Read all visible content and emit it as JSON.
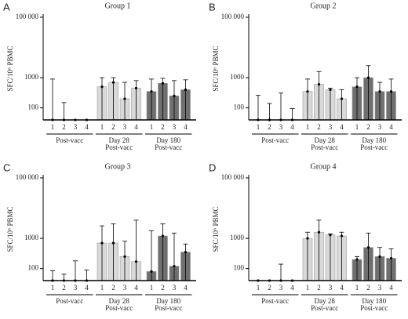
{
  "chart_data": [
    {
      "type": "bar",
      "panel": "A",
      "title": "Group 1",
      "ylabel": "SFC/10⁶ PBMC",
      "log_scale": true,
      "ylim": [
        40,
        100000
      ],
      "yticks": [
        100,
        1000,
        {
          "value": 100000,
          "label": "100 000"
        }
      ],
      "categories": [
        "1",
        "2",
        "3",
        "4",
        "1",
        "2",
        "3",
        "4",
        "1",
        "2",
        "3",
        "4"
      ],
      "groups": [
        {
          "label": [
            "Post-vacc"
          ],
          "color": "#ffffff"
        },
        {
          "label": [
            "Day 28",
            "Post-vacc"
          ],
          "color": "#d9d9d9"
        },
        {
          "label": [
            "Day 180",
            "Post-vacc"
          ],
          "color": "#6f6f6f"
        }
      ],
      "values": [
        40,
        40,
        40,
        40,
        500,
        700,
        200,
        450,
        350,
        650,
        250,
        400
      ],
      "whisker_max": [
        900,
        150,
        40,
        40,
        1000,
        1000,
        700,
        800,
        900,
        950,
        800,
        850
      ]
    },
    {
      "type": "bar",
      "panel": "B",
      "title": "Group 2",
      "ylabel": "SFC/10⁶ PBMC",
      "log_scale": true,
      "ylim": [
        40,
        100000
      ],
      "yticks": [
        100,
        1000,
        {
          "value": 100000,
          "label": "100 000"
        }
      ],
      "categories": [
        "1",
        "2",
        "3",
        "4",
        "1",
        "2",
        "3",
        "4",
        "1",
        "2",
        "3",
        "4"
      ],
      "groups": [
        {
          "label": [
            "Post-vacc"
          ],
          "color": "#ffffff"
        },
        {
          "label": [
            "Day 28",
            "Post-vacc"
          ],
          "color": "#d9d9d9"
        },
        {
          "label": [
            "Day 180",
            "Post-vacc"
          ],
          "color": "#6f6f6f"
        }
      ],
      "values": [
        40,
        40,
        40,
        40,
        350,
        600,
        400,
        200,
        500,
        1000,
        350,
        350
      ],
      "whisker_max": [
        260,
        140,
        310,
        95,
        900,
        1600,
        450,
        400,
        1000,
        2500,
        700,
        900
      ]
    },
    {
      "type": "bar",
      "panel": "C",
      "title": "Group 3",
      "ylabel": "SFC/10⁶ PBMC",
      "log_scale": true,
      "ylim": [
        40,
        100000
      ],
      "yticks": [
        100,
        1000,
        {
          "value": 100000,
          "label": "100 000"
        }
      ],
      "categories": [
        "1",
        "2",
        "3",
        "4",
        "1",
        "2",
        "3",
        "4",
        "1",
        "2",
        "3",
        "4"
      ],
      "groups": [
        {
          "label": [
            "Post-vacc"
          ],
          "color": "#ffffff"
        },
        {
          "label": [
            "Day 28",
            "Post-vacc"
          ],
          "color": "#d9d9d9"
        },
        {
          "label": [
            "Day 180",
            "Post-vacc"
          ],
          "color": "#6f6f6f"
        }
      ],
      "values": [
        40,
        40,
        40,
        40,
        700,
        700,
        250,
        170,
        80,
        1200,
        120,
        350
      ],
      "whisker_max": [
        85,
        65,
        180,
        90,
        2600,
        3000,
        800,
        4000,
        1800,
        3000,
        1500,
        650
      ]
    },
    {
      "type": "bar",
      "panel": "D",
      "title": "Group 4",
      "ylabel": "SFC/10⁶ PBMC",
      "log_scale": true,
      "ylim": [
        40,
        100000
      ],
      "yticks": [
        100,
        1000,
        {
          "value": 100000,
          "label": "100 000"
        }
      ],
      "categories": [
        "1",
        "2",
        "3",
        "4",
        "1",
        "2",
        "3",
        "4",
        "1",
        "2",
        "3",
        "4"
      ],
      "groups": [
        {
          "label": [
            "Post-vacc"
          ],
          "color": "#ffffff"
        },
        {
          "label": [
            "Day 28",
            "Post-vacc"
          ],
          "color": "#d9d9d9"
        },
        {
          "label": [
            "Day 180",
            "Post-vacc"
          ],
          "color": "#6f6f6f"
        }
      ],
      "values": [
        40,
        40,
        40,
        40,
        1000,
        1600,
        1300,
        1200,
        200,
        500,
        250,
        220
      ],
      "whisker_max": [
        40,
        40,
        140,
        40,
        1600,
        4000,
        1400,
        1600,
        250,
        1500,
        500,
        450
      ]
    }
  ]
}
